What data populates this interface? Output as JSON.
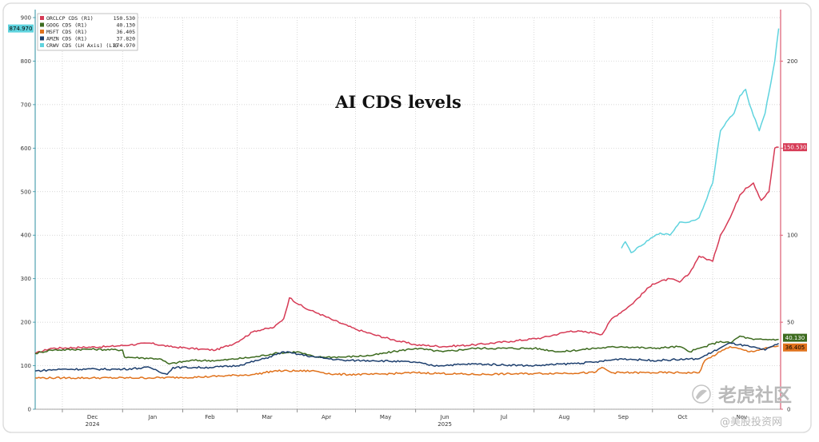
{
  "chart_data": {
    "type": "line",
    "title": "AI CDS levels",
    "x_ticks": [
      {
        "label": "Dec",
        "sub": "2024",
        "date": "2024-12-01"
      },
      {
        "label": "Jan",
        "sub": "",
        "date": "2025-01-01"
      },
      {
        "label": "Feb",
        "sub": "",
        "date": "2025-02-01"
      },
      {
        "label": "Mar",
        "sub": "",
        "date": "2025-03-01"
      },
      {
        "label": "Apr",
        "sub": "",
        "date": "2025-04-01"
      },
      {
        "label": "May",
        "sub": "",
        "date": "2025-05-01"
      },
      {
        "label": "Jun",
        "sub": "2025",
        "date": "2025-06-01"
      },
      {
        "label": "Jul",
        "sub": "",
        "date": "2025-07-01"
      },
      {
        "label": "Aug",
        "sub": "",
        "date": "2025-08-01"
      },
      {
        "label": "Sep",
        "sub": "",
        "date": "2025-09-01"
      },
      {
        "label": "Oct",
        "sub": "",
        "date": "2025-10-01"
      },
      {
        "label": "Nov",
        "sub": "",
        "date": "2025-11-01"
      }
    ],
    "x_range": [
      "2024-11-17",
      "2025-12-06"
    ],
    "left_axis": {
      "ylim": [
        0,
        900
      ],
      "ticks": [
        0,
        100,
        200,
        300,
        400,
        500,
        600,
        700,
        800,
        900
      ]
    },
    "right_axis": {
      "ylim": [
        0,
        225
      ],
      "ticks": [
        0,
        50,
        100,
        150,
        200
      ]
    },
    "grid": true,
    "legend": "top-left",
    "series": [
      {
        "name": "ORCLCP CDS (R1)",
        "last": "150.530",
        "color": "#d63a55",
        "axis": "right",
        "points": [
          [
            "2024-11-17",
            32
          ],
          [
            "2024-11-25",
            35
          ],
          [
            "2024-12-10",
            35.5
          ],
          [
            "2024-12-25",
            36
          ],
          [
            "2025-01-05",
            37
          ],
          [
            "2025-01-15",
            38
          ],
          [
            "2025-01-25",
            36
          ],
          [
            "2025-02-10",
            34.5
          ],
          [
            "2025-02-18",
            34
          ],
          [
            "2025-02-28",
            38
          ],
          [
            "2025-03-10",
            45
          ],
          [
            "2025-03-20",
            47
          ],
          [
            "2025-03-25",
            52
          ],
          [
            "2025-03-28",
            64
          ],
          [
            "2025-04-05",
            58
          ],
          [
            "2025-04-12",
            55
          ],
          [
            "2025-04-20",
            51
          ],
          [
            "2025-05-01",
            46
          ],
          [
            "2025-05-10",
            43
          ],
          [
            "2025-05-20",
            40
          ],
          [
            "2025-06-01",
            37
          ],
          [
            "2025-06-15",
            36
          ],
          [
            "2025-07-01",
            37
          ],
          [
            "2025-07-20",
            39
          ],
          [
            "2025-08-05",
            41
          ],
          [
            "2025-08-20",
            45
          ],
          [
            "2025-09-01",
            44
          ],
          [
            "2025-09-05",
            43
          ],
          [
            "2025-09-10",
            52
          ],
          [
            "2025-09-20",
            60
          ],
          [
            "2025-10-01",
            72
          ],
          [
            "2025-10-10",
            75
          ],
          [
            "2025-10-15",
            73
          ],
          [
            "2025-10-20",
            78
          ],
          [
            "2025-10-25",
            88
          ],
          [
            "2025-11-01",
            85
          ],
          [
            "2025-11-05",
            100
          ],
          [
            "2025-11-10",
            110
          ],
          [
            "2025-11-15",
            123
          ],
          [
            "2025-11-18",
            127
          ],
          [
            "2025-11-22",
            130
          ],
          [
            "2025-11-26",
            120
          ],
          [
            "2025-11-30",
            125
          ],
          [
            "2025-12-03",
            150
          ],
          [
            "2025-12-05",
            150.53
          ]
        ]
      },
      {
        "name": "GOOG CDS (R1)",
        "last": "40.130",
        "color": "#3d6b1f",
        "axis": "right",
        "points": [
          [
            "2024-11-17",
            32
          ],
          [
            "2024-11-25",
            34
          ],
          [
            "2024-12-15",
            34.5
          ],
          [
            "2025-01-01",
            34
          ],
          [
            "2025-01-02",
            30
          ],
          [
            "2025-01-20",
            29
          ],
          [
            "2025-01-25",
            26
          ],
          [
            "2025-02-05",
            28
          ],
          [
            "2025-02-20",
            28
          ],
          [
            "2025-03-10",
            30
          ],
          [
            "2025-03-20",
            32
          ],
          [
            "2025-04-01",
            33
          ],
          [
            "2025-04-10",
            30
          ],
          [
            "2025-04-25",
            30
          ],
          [
            "2025-05-10",
            31
          ],
          [
            "2025-05-20",
            33
          ],
          [
            "2025-06-01",
            35
          ],
          [
            "2025-06-15",
            33
          ],
          [
            "2025-07-01",
            35
          ],
          [
            "2025-07-15",
            35
          ],
          [
            "2025-08-01",
            35
          ],
          [
            "2025-08-15",
            33
          ],
          [
            "2025-09-01",
            35
          ],
          [
            "2025-09-15",
            36
          ],
          [
            "2025-10-01",
            35
          ],
          [
            "2025-10-15",
            36
          ],
          [
            "2025-10-20",
            33
          ],
          [
            "2025-10-28",
            36
          ],
          [
            "2025-11-05",
            39
          ],
          [
            "2025-11-10",
            38
          ],
          [
            "2025-11-15",
            42
          ],
          [
            "2025-11-22",
            40
          ],
          [
            "2025-12-05",
            40.13
          ]
        ]
      },
      {
        "name": "MSFT CDS (R1)",
        "last": "36.405",
        "color": "#e0721c",
        "axis": "right",
        "points": [
          [
            "2024-11-17",
            18
          ],
          [
            "2024-12-01",
            18
          ],
          [
            "2025-01-15",
            18
          ],
          [
            "2025-02-10",
            18.5
          ],
          [
            "2025-03-10",
            20
          ],
          [
            "2025-03-20",
            22
          ],
          [
            "2025-04-10",
            22
          ],
          [
            "2025-04-20",
            20
          ],
          [
            "2025-05-10",
            20
          ],
          [
            "2025-06-01",
            21
          ],
          [
            "2025-07-01",
            20
          ],
          [
            "2025-08-01",
            20.5
          ],
          [
            "2025-09-01",
            21
          ],
          [
            "2025-09-05",
            24
          ],
          [
            "2025-09-10",
            21
          ],
          [
            "2025-10-01",
            21
          ],
          [
            "2025-10-25",
            21
          ],
          [
            "2025-10-28",
            28
          ],
          [
            "2025-11-05",
            33
          ],
          [
            "2025-11-10",
            36
          ],
          [
            "2025-11-20",
            33
          ],
          [
            "2025-12-05",
            36.405
          ]
        ]
      },
      {
        "name": "AMZN CDS (R1)",
        "last": "37.820",
        "color": "#1d3f6e",
        "axis": "right",
        "points": [
          [
            "2024-11-17",
            22
          ],
          [
            "2024-12-01",
            23
          ],
          [
            "2025-01-01",
            23
          ],
          [
            "2025-01-15",
            24
          ],
          [
            "2025-01-24",
            20
          ],
          [
            "2025-01-27",
            24
          ],
          [
            "2025-02-15",
            24
          ],
          [
            "2025-03-01",
            25
          ],
          [
            "2025-03-15",
            29
          ],
          [
            "2025-03-25",
            33
          ],
          [
            "2025-04-10",
            30
          ],
          [
            "2025-04-25",
            28
          ],
          [
            "2025-05-10",
            28
          ],
          [
            "2025-06-01",
            27
          ],
          [
            "2025-06-10",
            25
          ],
          [
            "2025-07-01",
            26
          ],
          [
            "2025-08-01",
            25
          ],
          [
            "2025-09-01",
            27
          ],
          [
            "2025-09-15",
            29
          ],
          [
            "2025-10-01",
            28
          ],
          [
            "2025-10-25",
            29
          ],
          [
            "2025-11-01",
            33
          ],
          [
            "2025-11-10",
            38
          ],
          [
            "2025-11-20",
            36
          ],
          [
            "2025-11-28",
            34
          ],
          [
            "2025-12-05",
            37.82
          ]
        ]
      },
      {
        "name": "CRWV CDS (LH Axis) (L1)",
        "last": "874.970",
        "color": "#5fd3de",
        "axis": "left",
        "points": [
          [
            "2025-09-15",
            370
          ],
          [
            "2025-09-17",
            385
          ],
          [
            "2025-09-20",
            360
          ],
          [
            "2025-09-25",
            375
          ],
          [
            "2025-10-01",
            395
          ],
          [
            "2025-10-05",
            405
          ],
          [
            "2025-10-10",
            400
          ],
          [
            "2025-10-15",
            430
          ],
          [
            "2025-10-20",
            430
          ],
          [
            "2025-10-25",
            440
          ],
          [
            "2025-11-01",
            520
          ],
          [
            "2025-11-05",
            640
          ],
          [
            "2025-11-08",
            660
          ],
          [
            "2025-11-12",
            680
          ],
          [
            "2025-11-15",
            720
          ],
          [
            "2025-11-18",
            735
          ],
          [
            "2025-11-20",
            700
          ],
          [
            "2025-11-25",
            640
          ],
          [
            "2025-11-28",
            680
          ],
          [
            "2025-12-03",
            800
          ],
          [
            "2025-12-05",
            874.97
          ]
        ]
      }
    ]
  },
  "value_boxes": {
    "left_crwv": "874.970",
    "right_orcl": "150.530",
    "right_goog": "40.130",
    "right_msft": "36.405"
  },
  "watermark": {
    "main": "老虎社区",
    "sub": "@美股投资网"
  },
  "colors": {
    "frame": "#dddddd",
    "left_axis": "#2e8fa0",
    "right_axis": "#d63a55",
    "grid": "#c9c9c9"
  }
}
